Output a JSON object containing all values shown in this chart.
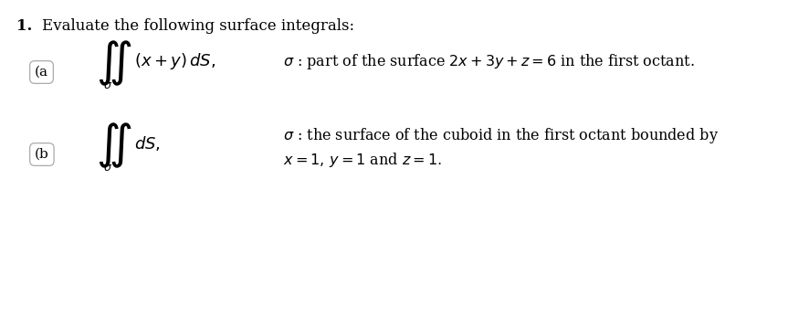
{
  "bg_color": "#ffffff",
  "number_text": "1.",
  "header_text": "Evaluate the following surface integrals:",
  "label_a": "(a",
  "label_b": "(b",
  "sigma_a_desc": "σ : part of the surface $2x + 3y + z = 6$ in the first octant.",
  "sigma_b_desc_line1": "σ : the surface of the cuboid in the first octant bounded by",
  "sigma_b_desc_line2": "$x = 1, y = 1$ and $z = 1.$",
  "fontsize_header": 12,
  "fontsize_number": 12,
  "fontsize_label": 11,
  "fontsize_integral": 26,
  "fontsize_desc": 11.5,
  "fontsize_sigma_sub": 10
}
